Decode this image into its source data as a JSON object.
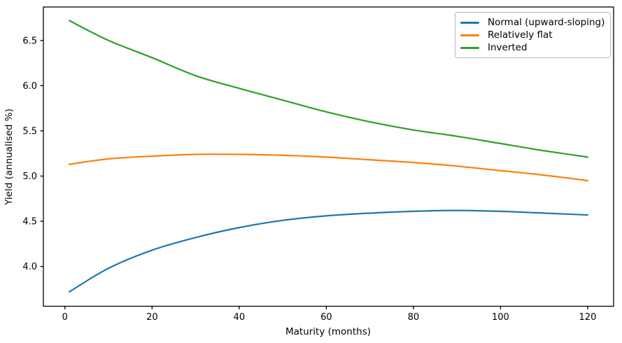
{
  "chart_data": {
    "type": "line",
    "title": "",
    "xlabel": "Maturity (months)",
    "ylabel": "Yield (annualised %)",
    "x": [
      1,
      10,
      20,
      30,
      40,
      50,
      60,
      70,
      80,
      90,
      100,
      110,
      120
    ],
    "series": [
      {
        "name": "Normal (upward-sloping)",
        "color": "#1f77b4",
        "values": [
          3.72,
          3.98,
          4.18,
          4.32,
          4.43,
          4.51,
          4.56,
          4.59,
          4.61,
          4.62,
          4.61,
          4.59,
          4.57
        ]
      },
      {
        "name": "Relatively flat",
        "color": "#ff7f0e",
        "values": [
          5.13,
          5.19,
          5.22,
          5.24,
          5.24,
          5.23,
          5.21,
          5.18,
          5.15,
          5.11,
          5.06,
          5.01,
          4.95
        ]
      },
      {
        "name": "Inverted",
        "color": "#2ca02c",
        "values": [
          6.72,
          6.5,
          6.31,
          6.11,
          5.97,
          5.84,
          5.71,
          5.6,
          5.51,
          5.44,
          5.36,
          5.28,
          5.21
        ]
      }
    ],
    "xlim": [
      -4.95,
      125.95
    ],
    "ylim": [
      3.56,
      6.87
    ],
    "xticks": [
      0,
      20,
      40,
      60,
      80,
      100,
      120
    ],
    "yticks": [
      4.0,
      4.5,
      5.0,
      5.5,
      6.0,
      6.5
    ],
    "grid": false,
    "legend_position": "upper right",
    "axis_color": "#000000",
    "background_color": "#ffffff"
  }
}
